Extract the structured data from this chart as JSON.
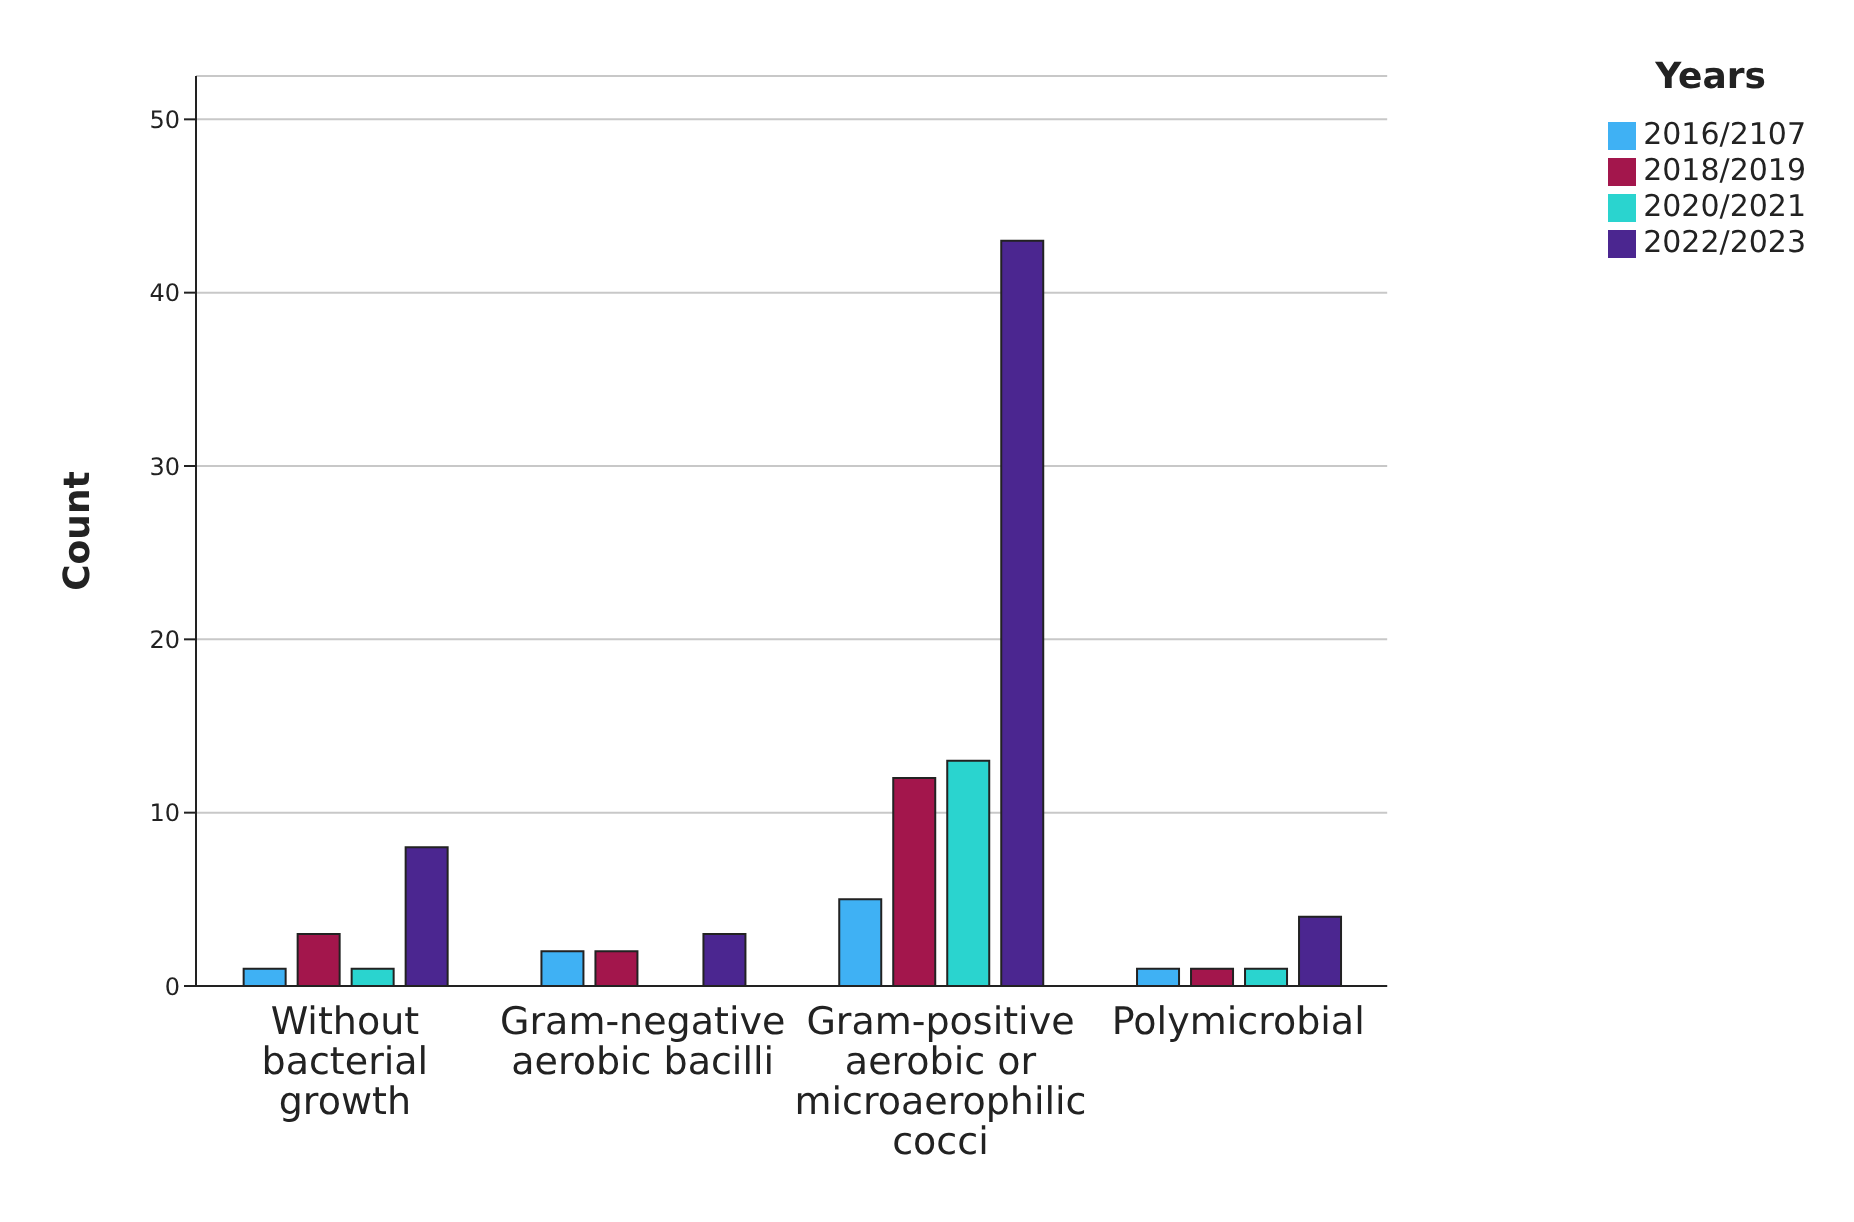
{
  "chart_data": {
    "type": "bar",
    "ylabel": "Count",
    "legend_title": "Years",
    "categories": [
      "Without bacterial growth",
      "Gram-negative aerobic bacilli",
      "Gram-positive aerobic or microaerophilic cocci",
      "Polymicrobial"
    ],
    "series": [
      {
        "name": "2016/2107",
        "color": "#3fb1f4",
        "values": [
          1,
          2,
          5,
          1
        ]
      },
      {
        "name": "2018/2019",
        "color": "#a3164c",
        "values": [
          3,
          2,
          12,
          1
        ]
      },
      {
        "name": "2020/2021",
        "color": "#2ad4cf",
        "values": [
          1,
          0,
          13,
          1
        ]
      },
      {
        "name": "2022/2023",
        "color": "#4b2690",
        "values": [
          8,
          3,
          43,
          4
        ]
      }
    ],
    "ylim": [
      0,
      52.5
    ],
    "yticks": [
      0,
      10,
      20,
      30,
      40,
      50
    ],
    "grid": "y",
    "legend": "top right"
  }
}
